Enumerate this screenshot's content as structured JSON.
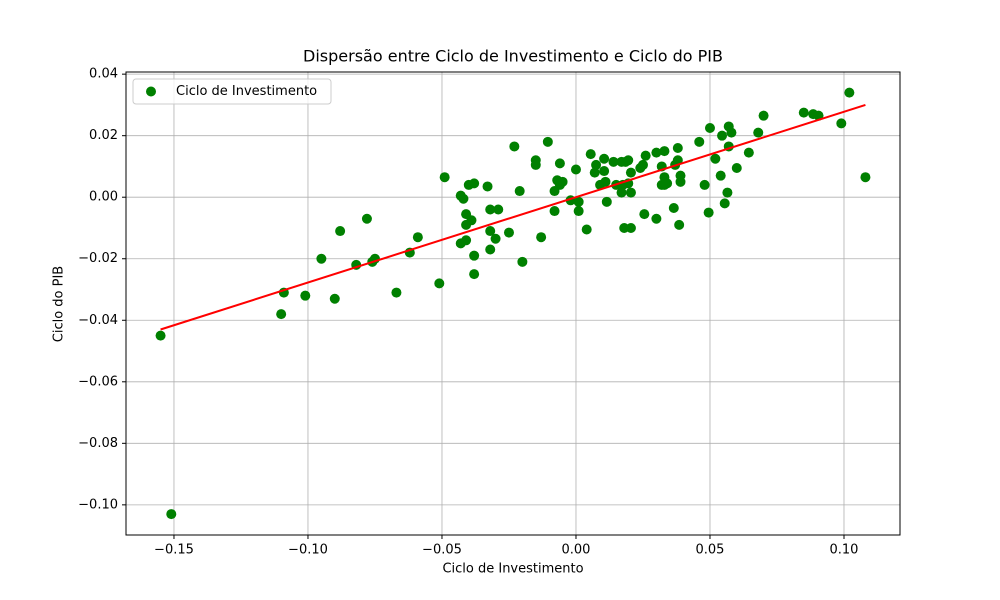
{
  "chart_data": {
    "type": "scatter",
    "title": "Dispersão entre Ciclo de Investimento e Ciclo do PIB",
    "xlabel": "Ciclo de Investimento",
    "ylabel": "Ciclo do PIB",
    "xlim": [
      -0.1679,
      0.1209
    ],
    "ylim": [
      -0.1098,
      0.0407
    ],
    "xticks": [
      {
        "value": -0.15,
        "label": "−0.15"
      },
      {
        "value": -0.1,
        "label": "−0.10"
      },
      {
        "value": -0.05,
        "label": "−0.05"
      },
      {
        "value": 0,
        "label": "0.00"
      },
      0.05,
      {
        "value": 0.1,
        "label": "0.10"
      }
    ],
    "yticks": [
      {
        "value": -0.1,
        "label": "−0.10"
      },
      {
        "value": -0.08,
        "label": "−0.08"
      },
      {
        "value": -0.06,
        "label": "−0.06"
      },
      {
        "value": -0.04,
        "label": "−0.04"
      },
      {
        "value": -0.02,
        "label": "−0.02"
      },
      {
        "value": 0,
        "label": "0.00"
      },
      0.02,
      0.04
    ],
    "grid": true,
    "legend": "upper left",
    "series": [
      {
        "name": "Ciclo de Investimento",
        "color": "green",
        "x": [
          -0.155,
          -0.151,
          -0.11,
          -0.109,
          -0.101,
          -0.095,
          -0.09,
          -0.088,
          -0.082,
          -0.078,
          -0.076,
          -0.075,
          -0.067,
          -0.062,
          -0.059,
          -0.051,
          -0.049,
          -0.043,
          -0.043,
          -0.042,
          -0.041,
          -0.041,
          -0.041,
          -0.04,
          -0.039,
          -0.038,
          -0.038,
          -0.038,
          -0.033,
          -0.032,
          -0.032,
          -0.032,
          -0.03,
          -0.029,
          -0.025,
          -0.023,
          -0.021,
          -0.02,
          -0.015,
          -0.015,
          -0.013,
          -0.0105,
          -0.008,
          -0.008,
          -0.007,
          -0.006,
          -0.006,
          -0.005,
          -0.002,
          0.0,
          0.001,
          0.001,
          0.004,
          0.0055,
          0.007,
          0.0075,
          0.009,
          0.0105,
          0.0105,
          0.011,
          0.0115,
          0.014,
          0.015,
          0.017,
          0.017,
          0.0175,
          0.018,
          0.0185,
          0.0195,
          0.0195,
          0.0205,
          0.0205,
          0.0205,
          0.024,
          0.025,
          0.0255,
          0.026,
          0.03,
          0.03,
          0.032,
          0.032,
          0.033,
          0.033,
          0.033,
          0.034,
          0.0365,
          0.037,
          0.038,
          0.038,
          0.0385,
          0.039,
          0.039,
          0.046,
          0.048,
          0.0495,
          0.05,
          0.052,
          0.054,
          0.0545,
          0.0555,
          0.0565,
          0.057,
          0.057,
          0.058,
          0.06,
          0.0645,
          0.068,
          0.07,
          0.085,
          0.0885,
          0.0905,
          0.099,
          0.102,
          0.108
        ],
        "values": [
          -0.045,
          -0.103,
          -0.038,
          -0.031,
          -0.032,
          -0.02,
          -0.033,
          -0.011,
          -0.022,
          -0.007,
          -0.021,
          -0.02,
          -0.031,
          -0.018,
          -0.013,
          -0.028,
          0.0065,
          -0.015,
          0.0005,
          -0.0005,
          -0.0055,
          -0.014,
          -0.009,
          0.004,
          -0.0075,
          -0.019,
          -0.025,
          0.0045,
          0.0035,
          -0.004,
          -0.017,
          -0.011,
          -0.0135,
          -0.004,
          -0.0115,
          0.0165,
          0.002,
          -0.021,
          0.012,
          0.0105,
          -0.013,
          0.018,
          0.002,
          -0.0045,
          0.0055,
          0.011,
          0.004,
          0.005,
          -0.001,
          0.009,
          -0.0045,
          -0.0015,
          -0.0105,
          0.014,
          0.008,
          0.0105,
          0.004,
          0.0125,
          0.0085,
          0.005,
          -0.0015,
          0.0115,
          0.004,
          0.0015,
          0.0115,
          0.004,
          -0.01,
          0.0115,
          0.012,
          0.0045,
          0.008,
          0.0015,
          -0.01,
          0.0095,
          0.0105,
          -0.0055,
          0.0135,
          0.0145,
          -0.007,
          0.01,
          0.004,
          0.015,
          0.0065,
          0.004,
          0.0045,
          -0.0035,
          0.0105,
          0.012,
          0.016,
          -0.009,
          0.005,
          0.007,
          0.018,
          0.004,
          -0.005,
          0.0225,
          0.0125,
          0.007,
          0.02,
          -0.002,
          0.0015,
          0.0165,
          0.023,
          0.021,
          0.0095,
          0.0145,
          0.021,
          0.0265,
          0.0275,
          0.027,
          0.0265,
          0.024,
          0.034,
          0.0065
        ]
      }
    ],
    "fit": {
      "color": "red",
      "x": [
        -0.155,
        0.108
      ],
      "values": [
        -0.043,
        0.03
      ]
    }
  }
}
